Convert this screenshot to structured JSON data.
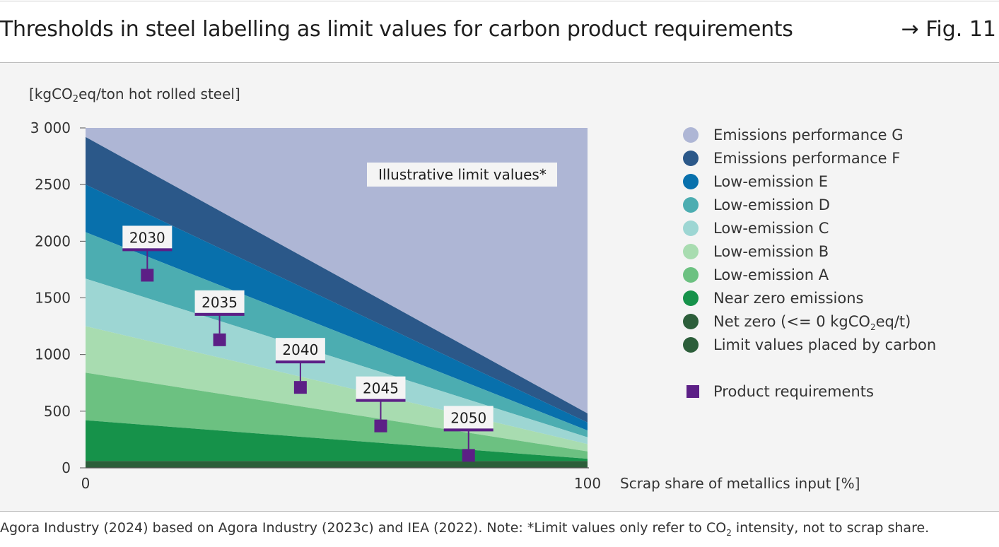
{
  "header": {
    "title": "Thresholds in steel labelling as limit values for carbon product requirements",
    "figure_ref": "→ Fig. 11"
  },
  "footer": {
    "source_note_parts": [
      "Agora Industry (2024) based on Agora Industry (2023c) and IEA (2022). Note: *Limit values only refer to CO",
      "2",
      " intensity, not to scrap share."
    ]
  },
  "chart_data": {
    "type": "area",
    "ylabel_parts": [
      "[kgCO",
      "2",
      "eq/ton hot rolled steel]"
    ],
    "xlabel": "Scrap share of metallics input [%]",
    "x_ticks": [
      "0",
      "100"
    ],
    "y_ticks": [
      "0",
      "500",
      "1000",
      "1500",
      "2000",
      "2500",
      "3 000"
    ],
    "xlim": [
      0,
      100
    ],
    "ylim": [
      0,
      3000
    ],
    "annotation": "Illustrative limit values*",
    "bands": [
      {
        "name": "Emissions performance G",
        "color": "#aeb6d5",
        "upper": [
          3000,
          3000
        ],
        "lower": [
          2920,
          480
        ]
      },
      {
        "name": "Emissions performance F",
        "color": "#2b5889",
        "upper": [
          2920,
          480
        ],
        "lower": [
          2500,
          400
        ]
      },
      {
        "name": "Low-emission E",
        "color": "#0870ac",
        "upper": [
          2500,
          400
        ],
        "lower": [
          2080,
          330
        ]
      },
      {
        "name": "Low-emission D",
        "color": "#4cadb1",
        "upper": [
          2080,
          330
        ],
        "lower": [
          1670,
          270
        ]
      },
      {
        "name": "Low-emission C",
        "color": "#9dd6d3",
        "upper": [
          1670,
          270
        ],
        "lower": [
          1250,
          210
        ]
      },
      {
        "name": "Low-emission B",
        "color": "#a8dcb0",
        "upper": [
          1250,
          210
        ],
        "lower": [
          840,
          145
        ]
      },
      {
        "name": "Low-emission A",
        "color": "#6cc181",
        "upper": [
          840,
          145
        ],
        "lower": [
          420,
          80
        ]
      },
      {
        "name": "Near zero emissions",
        "color": "#16924a",
        "upper": [
          420,
          80
        ],
        "lower": [
          60,
          60
        ]
      },
      {
        "name": "Net zero",
        "color": "#2c5e3a",
        "upper": [
          60,
          60
        ],
        "lower": [
          0,
          0
        ]
      }
    ],
    "product_requirements": [
      {
        "year": "2030",
        "x": 12.3,
        "y": 1700
      },
      {
        "year": "2035",
        "x": 26.7,
        "y": 1130
      },
      {
        "year": "2040",
        "x": 42.8,
        "y": 710
      },
      {
        "year": "2045",
        "x": 58.8,
        "y": 370
      },
      {
        "year": "2050",
        "x": 76.3,
        "y": 110
      }
    ],
    "legend": [
      {
        "label_parts": [
          "Emissions performance G"
        ],
        "color": "#aeb6d5",
        "shape": "circle"
      },
      {
        "label_parts": [
          "Emissions performance F"
        ],
        "color": "#2b5889",
        "shape": "circle"
      },
      {
        "label_parts": [
          "Low-emission E"
        ],
        "color": "#0870ac",
        "shape": "circle"
      },
      {
        "label_parts": [
          "Low-emission D"
        ],
        "color": "#4cadb1",
        "shape": "circle"
      },
      {
        "label_parts": [
          "Low-emission C"
        ],
        "color": "#9dd6d3",
        "shape": "circle"
      },
      {
        "label_parts": [
          "Low-emission B"
        ],
        "color": "#a8dcb0",
        "shape": "circle"
      },
      {
        "label_parts": [
          "Low-emission A"
        ],
        "color": "#6cc181",
        "shape": "circle"
      },
      {
        "label_parts": [
          "Near zero emissions"
        ],
        "color": "#16924a",
        "shape": "circle"
      },
      {
        "label_parts": [
          "Net zero (<= 0 kgCO",
          "2",
          "eq/t)"
        ],
        "color": "#2c5e3a",
        "shape": "circle"
      },
      {
        "label_parts": [
          "Limit values placed by carbon"
        ],
        "color": "#2c5e3a",
        "shape": "circle"
      },
      {
        "label_parts": [
          "Product requirements"
        ],
        "color": "#5c1f86",
        "shape": "square"
      }
    ]
  }
}
